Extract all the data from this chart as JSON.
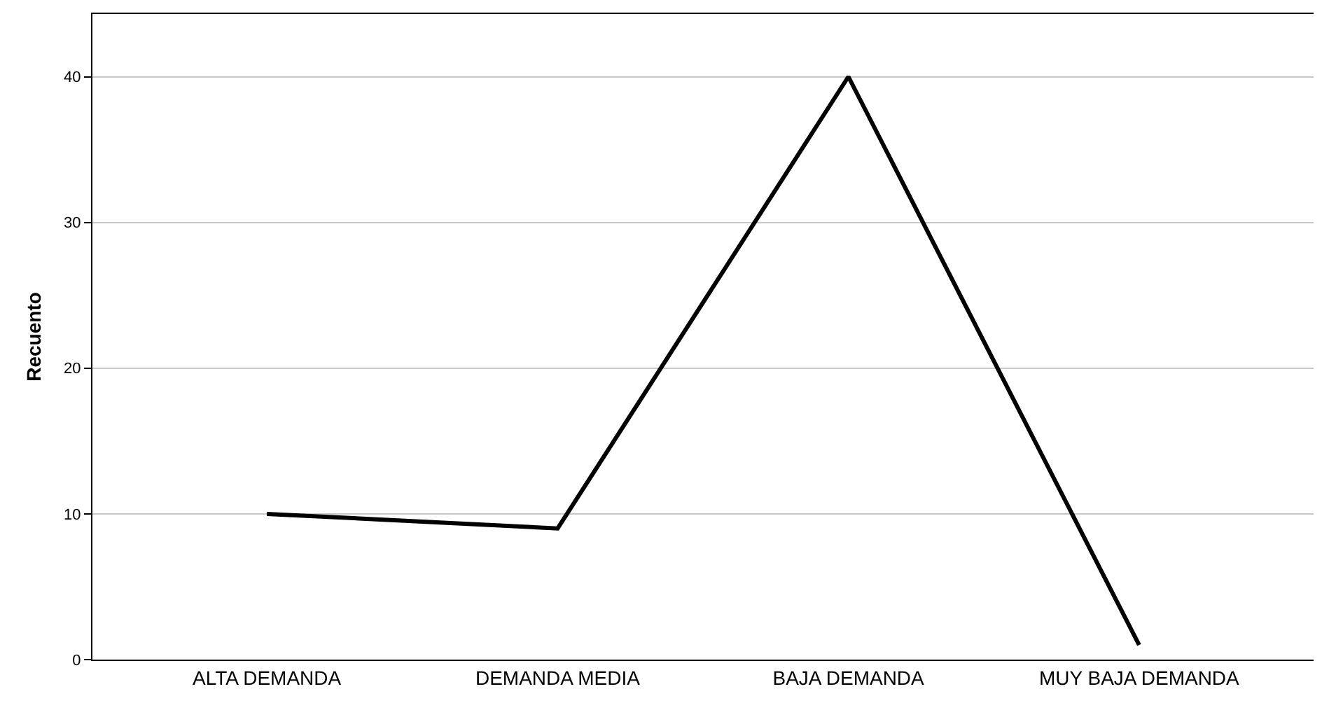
{
  "chart_data": {
    "type": "line",
    "ylabel": "Recuento",
    "categories": [
      "ALTA DEMANDA",
      "DEMANDA MEDIA",
      "BAJA DEMANDA",
      "MUY BAJA DEMANDA"
    ],
    "series": [
      {
        "color": "#000000",
        "values": [
          10,
          9,
          40,
          1
        ]
      }
    ],
    "ylim": [
      0,
      44.3
    ],
    "yticks": [
      0,
      10,
      20,
      30,
      40
    ],
    "grid": "y",
    "marker": "none",
    "line_style": "solid"
  }
}
